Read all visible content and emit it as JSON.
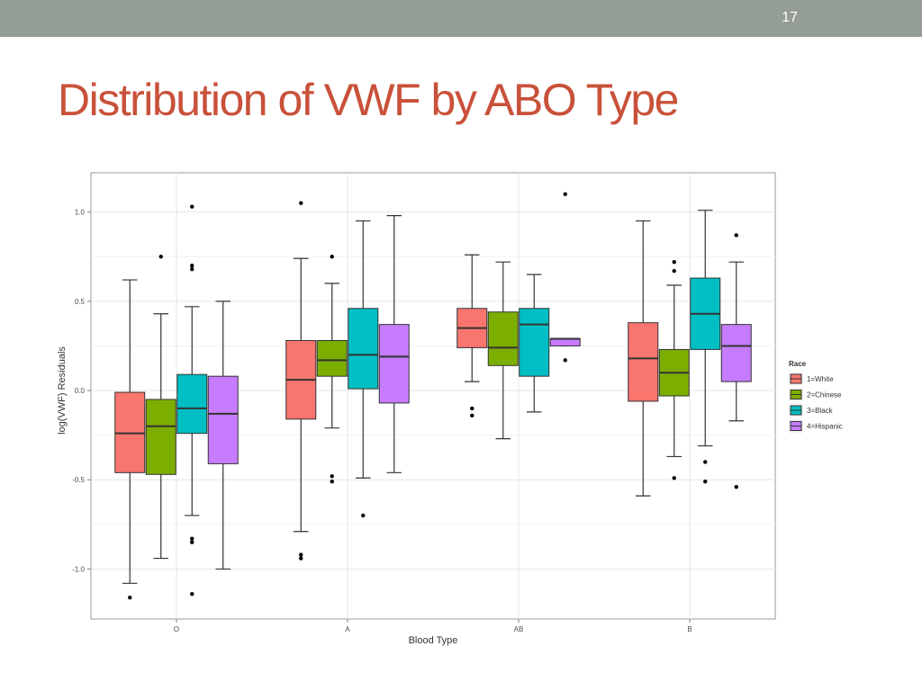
{
  "slide": {
    "number": "17",
    "title": "Distribution of VWF by ABO Type"
  },
  "colors": {
    "top_bar": "#949e96",
    "title": "#c9513a"
  },
  "chart_data": {
    "type": "boxplot",
    "xlabel": "Blood Type",
    "ylabel": "log(VWF) Residuals",
    "categories": [
      "O",
      "A",
      "AB",
      "B"
    ],
    "ylim": [
      -1.28,
      1.22
    ],
    "y_ticks": [
      {
        "value": 1.0,
        "label": "1.0"
      },
      {
        "value": 0.5,
        "label": "0.5"
      },
      {
        "value": 0.0,
        "label": "0.0"
      },
      {
        "value": -0.5,
        "label": "-0.5"
      },
      {
        "value": -1.0,
        "label": "-1.0"
      }
    ],
    "grid": true,
    "legend": {
      "title": "Race",
      "placement": "right",
      "entries": [
        {
          "label": "1=White",
          "color": "#f8766d"
        },
        {
          "label": "2=Chinese",
          "color": "#7cae00"
        },
        {
          "label": "3=Black",
          "color": "#00bfc4"
        },
        {
          "label": "4=Hispanic",
          "color": "#c77cff"
        }
      ]
    },
    "series": [
      {
        "name": "1=White",
        "color": "#f8766d",
        "boxes": [
          {
            "category": "O",
            "whisker_low": -1.08,
            "q1": -0.46,
            "median": -0.24,
            "q3": -0.01,
            "whisker_high": 0.62,
            "outliers": [
              -1.16
            ]
          },
          {
            "category": "A",
            "whisker_low": -0.79,
            "q1": -0.16,
            "median": 0.06,
            "q3": 0.28,
            "whisker_high": 0.74,
            "outliers": [
              1.05,
              -0.92,
              -0.94
            ]
          },
          {
            "category": "AB",
            "whisker_low": 0.05,
            "q1": 0.24,
            "median": 0.35,
            "q3": 0.46,
            "whisker_high": 0.76,
            "outliers": [
              -0.1,
              -0.14
            ]
          },
          {
            "category": "B",
            "whisker_low": -0.59,
            "q1": -0.06,
            "median": 0.18,
            "q3": 0.38,
            "whisker_high": 0.95,
            "outliers": []
          }
        ]
      },
      {
        "name": "2=Chinese",
        "color": "#7cae00",
        "boxes": [
          {
            "category": "O",
            "whisker_low": -0.94,
            "q1": -0.47,
            "median": -0.2,
            "q3": -0.05,
            "whisker_high": 0.43,
            "outliers": [
              0.75
            ]
          },
          {
            "category": "A",
            "whisker_low": -0.21,
            "q1": 0.08,
            "median": 0.17,
            "q3": 0.28,
            "whisker_high": 0.6,
            "outliers": [
              0.75,
              -0.48,
              -0.51
            ]
          },
          {
            "category": "AB",
            "whisker_low": -0.27,
            "q1": 0.14,
            "median": 0.24,
            "q3": 0.44,
            "whisker_high": 0.72,
            "outliers": []
          },
          {
            "category": "B",
            "whisker_low": -0.37,
            "q1": -0.03,
            "median": 0.1,
            "q3": 0.23,
            "whisker_high": 0.59,
            "outliers": [
              0.72,
              0.67,
              -0.49
            ]
          }
        ]
      },
      {
        "name": "3=Black",
        "color": "#00bfc4",
        "boxes": [
          {
            "category": "O",
            "whisker_low": -0.7,
            "q1": -0.24,
            "median": -0.1,
            "q3": 0.09,
            "whisker_high": 0.47,
            "outliers": [
              1.03,
              0.7,
              0.68,
              -0.83,
              -0.85,
              -1.14
            ]
          },
          {
            "category": "A",
            "whisker_low": -0.49,
            "q1": 0.01,
            "median": 0.2,
            "q3": 0.46,
            "whisker_high": 0.95,
            "outliers": [
              -0.7
            ]
          },
          {
            "category": "AB",
            "whisker_low": -0.12,
            "q1": 0.08,
            "median": 0.37,
            "q3": 0.46,
            "whisker_high": 0.65,
            "outliers": []
          },
          {
            "category": "B",
            "whisker_low": -0.31,
            "q1": 0.23,
            "median": 0.43,
            "q3": 0.63,
            "whisker_high": 1.01,
            "outliers": [
              -0.4,
              -0.51
            ]
          }
        ]
      },
      {
        "name": "4=Hispanic",
        "color": "#c77cff",
        "boxes": [
          {
            "category": "O",
            "whisker_low": -1.0,
            "q1": -0.41,
            "median": -0.13,
            "q3": 0.08,
            "whisker_high": 0.5,
            "outliers": []
          },
          {
            "category": "A",
            "whisker_low": -0.46,
            "q1": -0.07,
            "median": 0.19,
            "q3": 0.37,
            "whisker_high": 0.98,
            "outliers": []
          },
          {
            "category": "AB",
            "whisker_low": 0.25,
            "q1": 0.25,
            "median": 0.29,
            "q3": 0.29,
            "whisker_high": 0.29,
            "outliers": [
              1.1,
              0.17
            ]
          },
          {
            "category": "B",
            "whisker_low": -0.17,
            "q1": 0.05,
            "median": 0.25,
            "q3": 0.37,
            "whisker_high": 0.72,
            "outliers": [
              0.87,
              -0.54
            ]
          }
        ]
      }
    ]
  }
}
